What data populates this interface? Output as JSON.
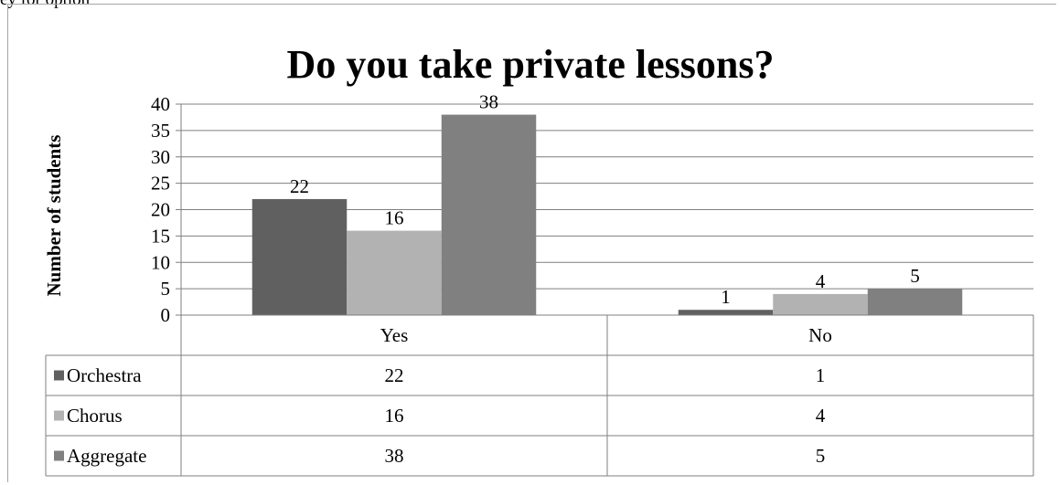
{
  "top_text": "ey for option",
  "chart_data": {
    "type": "bar",
    "title": "Do you take private lessons?",
    "ylabel": "Number of students",
    "xlabel": "",
    "categories": [
      "Yes",
      "No"
    ],
    "series": [
      {
        "name": "Orchestra",
        "values": [
          22,
          1
        ],
        "color": "#606060"
      },
      {
        "name": "Chorus",
        "values": [
          16,
          4
        ],
        "color": "#b2b2b2"
      },
      {
        "name": "Aggregate",
        "values": [
          38,
          5
        ],
        "color": "#808080"
      }
    ],
    "ylim": [
      0,
      40
    ],
    "yticks": [
      "0",
      "5",
      "10",
      "15",
      "20",
      "25",
      "30",
      "35",
      "40"
    ],
    "grid": true,
    "legend": "data-table",
    "data_table": true
  }
}
